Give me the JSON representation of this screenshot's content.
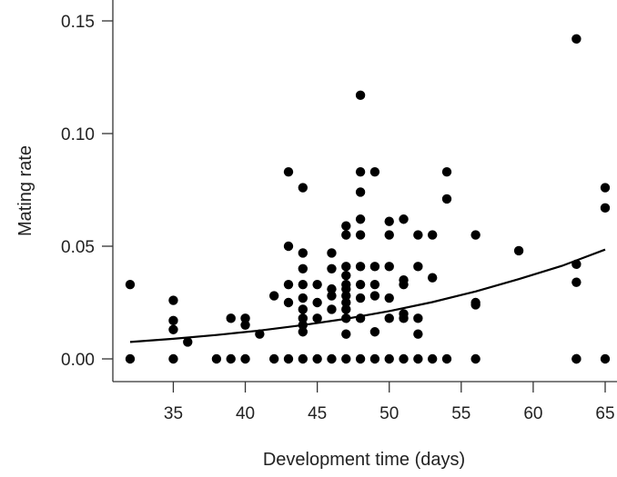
{
  "chart_data": {
    "type": "scatter",
    "title": "",
    "xlabel": "Development time (days)",
    "ylabel": "Mating rate",
    "xlim": [
      31,
      66
    ],
    "ylim": [
      -0.006,
      0.155
    ],
    "x_ticks": [
      35,
      40,
      45,
      50,
      55,
      60,
      65
    ],
    "y_ticks": [
      0.0,
      0.05,
      0.1,
      0.15
    ],
    "x_tick_labels": [
      "35",
      "40",
      "45",
      "50",
      "55",
      "60",
      "65"
    ],
    "y_tick_labels": [
      "0.00",
      "0.05",
      "0.10",
      "0.15"
    ],
    "grid": false,
    "legend": "none",
    "marker_color": "#000000",
    "points": [
      [
        32,
        0.033
      ],
      [
        32,
        0.0
      ],
      [
        35,
        0.026
      ],
      [
        35,
        0.017
      ],
      [
        35,
        0.013
      ],
      [
        35,
        0.0
      ],
      [
        36,
        0.0075
      ],
      [
        38,
        0.0
      ],
      [
        39,
        0.018
      ],
      [
        39,
        0.0
      ],
      [
        40,
        0.018
      ],
      [
        40,
        0.015
      ],
      [
        40,
        0.0
      ],
      [
        41,
        0.011
      ],
      [
        42,
        0.028
      ],
      [
        42,
        0.0
      ],
      [
        43,
        0.083
      ],
      [
        43,
        0.05
      ],
      [
        43,
        0.033
      ],
      [
        43,
        0.025
      ],
      [
        43,
        0.0
      ],
      [
        44,
        0.076
      ],
      [
        44,
        0.047
      ],
      [
        44,
        0.04
      ],
      [
        44,
        0.033
      ],
      [
        44,
        0.027
      ],
      [
        44,
        0.022
      ],
      [
        44,
        0.018
      ],
      [
        44,
        0.015
      ],
      [
        44,
        0.012
      ],
      [
        44,
        0.0
      ],
      [
        45,
        0.033
      ],
      [
        45,
        0.025
      ],
      [
        45,
        0.018
      ],
      [
        45,
        0.0
      ],
      [
        46,
        0.047
      ],
      [
        46,
        0.04
      ],
      [
        46,
        0.031
      ],
      [
        46,
        0.028
      ],
      [
        46,
        0.022
      ],
      [
        46,
        0.0
      ],
      [
        47,
        0.059
      ],
      [
        47,
        0.055
      ],
      [
        47,
        0.041
      ],
      [
        47,
        0.037
      ],
      [
        47,
        0.033
      ],
      [
        47,
        0.031
      ],
      [
        47,
        0.028
      ],
      [
        47,
        0.025
      ],
      [
        47,
        0.022
      ],
      [
        47,
        0.018
      ],
      [
        47,
        0.011
      ],
      [
        47,
        0.0
      ],
      [
        48,
        0.117
      ],
      [
        48,
        0.083
      ],
      [
        48,
        0.074
      ],
      [
        48,
        0.062
      ],
      [
        48,
        0.055
      ],
      [
        48,
        0.041
      ],
      [
        48,
        0.033
      ],
      [
        48,
        0.027
      ],
      [
        48,
        0.018
      ],
      [
        48,
        0.0
      ],
      [
        49,
        0.083
      ],
      [
        49,
        0.041
      ],
      [
        49,
        0.033
      ],
      [
        49,
        0.028
      ],
      [
        49,
        0.012
      ],
      [
        49,
        0.0
      ],
      [
        50,
        0.061
      ],
      [
        50,
        0.055
      ],
      [
        50,
        0.041
      ],
      [
        50,
        0.027
      ],
      [
        50,
        0.018
      ],
      [
        50,
        0.0
      ],
      [
        51,
        0.062
      ],
      [
        51,
        0.035
      ],
      [
        51,
        0.033
      ],
      [
        51,
        0.02
      ],
      [
        51,
        0.018
      ],
      [
        51,
        0.0
      ],
      [
        52,
        0.055
      ],
      [
        52,
        0.041
      ],
      [
        52,
        0.018
      ],
      [
        52,
        0.011
      ],
      [
        52,
        0.0
      ],
      [
        53,
        0.055
      ],
      [
        53,
        0.036
      ],
      [
        53,
        0.0
      ],
      [
        54,
        0.083
      ],
      [
        54,
        0.071
      ],
      [
        54,
        0.0
      ],
      [
        56,
        0.055
      ],
      [
        56,
        0.025
      ],
      [
        56,
        0.024
      ],
      [
        56,
        0.0
      ],
      [
        59,
        0.048
      ],
      [
        63,
        0.142
      ],
      [
        63,
        0.042
      ],
      [
        63,
        0.034
      ],
      [
        63,
        0.0
      ],
      [
        63,
        0.0
      ],
      [
        65,
        0.076
      ],
      [
        65,
        0.067
      ],
      [
        65,
        0.0
      ]
    ],
    "fit_curve": {
      "x": [
        32,
        35,
        38,
        41,
        44,
        47,
        50,
        53,
        56,
        59,
        62,
        65
      ],
      "y": [
        0.0075,
        0.0089,
        0.0106,
        0.0126,
        0.015,
        0.0178,
        0.0212,
        0.0252,
        0.0299,
        0.0354,
        0.0413,
        0.0485
      ]
    }
  }
}
